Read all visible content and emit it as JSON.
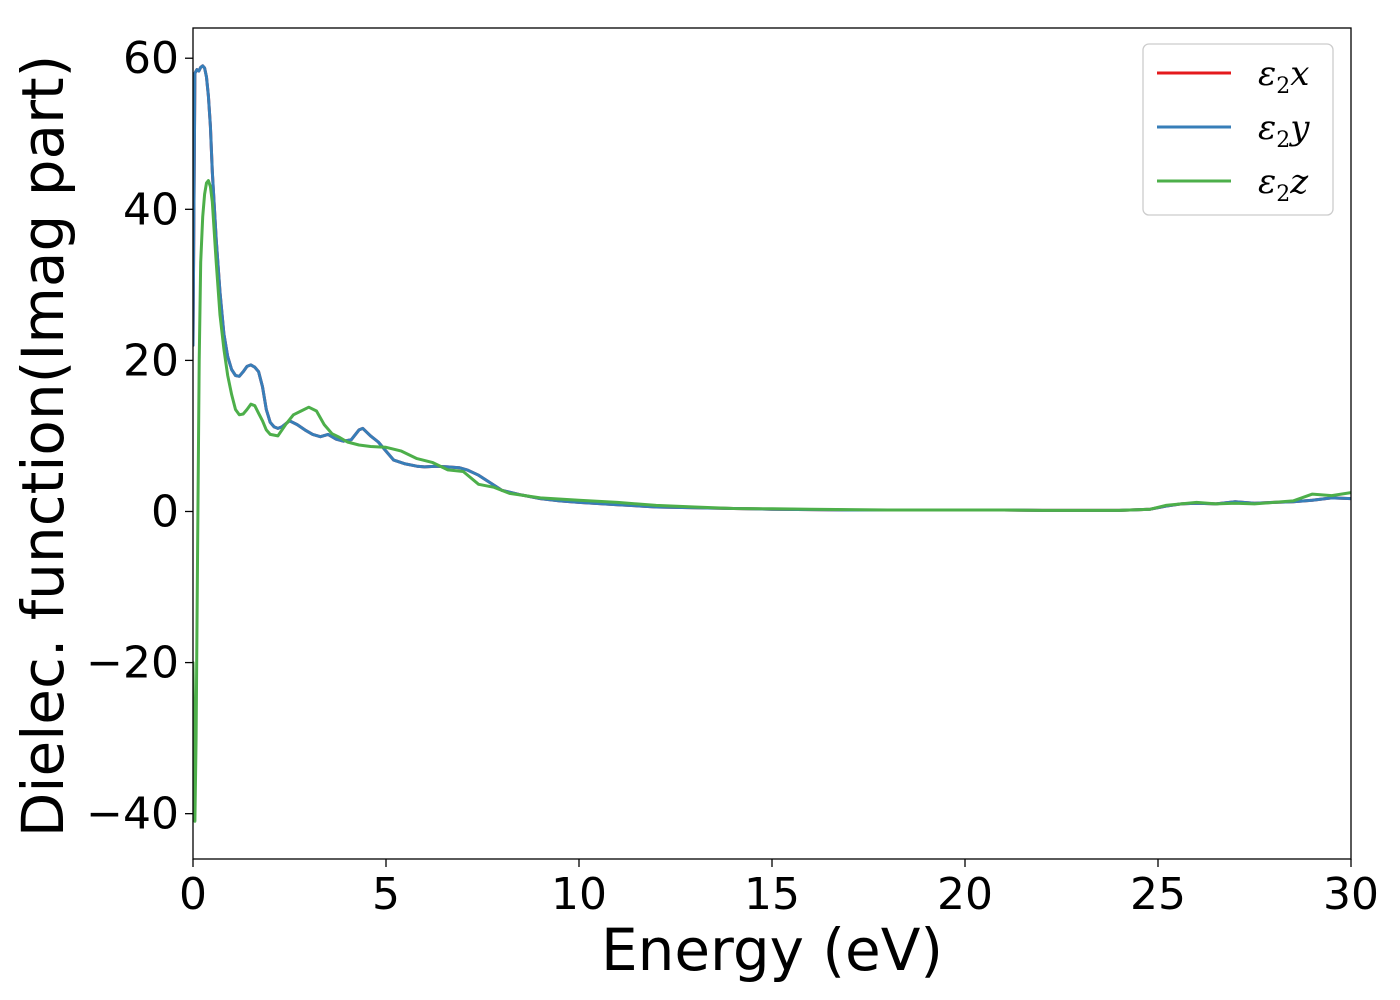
{
  "chart_data": {
    "type": "line",
    "xlabel": "Energy (eV)",
    "ylabel": "Dielec. function(Imag part)",
    "xlim": [
      0,
      30
    ],
    "ylim": [
      -46,
      64
    ],
    "xticks": [
      0,
      5,
      10,
      15,
      20,
      25,
      30
    ],
    "yticks": [
      -40,
      -20,
      0,
      20,
      40,
      60
    ],
    "ytick_labels": [
      "−40",
      "−20",
      "0",
      "20",
      "40",
      "60"
    ],
    "grid": false,
    "legend_position": "top-right",
    "series": [
      {
        "name": "ε₂x",
        "legend_symbol": "ε",
        "legend_sub": "2",
        "legend_var": "x",
        "color": "#e41a1c",
        "x": [
          0,
          0.05,
          0.1,
          0.15,
          0.2,
          0.25,
          0.3,
          0.35,
          0.4,
          0.45,
          0.5,
          0.6,
          0.7,
          0.8,
          0.9,
          1.0,
          1.1,
          1.2,
          1.3,
          1.4,
          1.5,
          1.6,
          1.7,
          1.8,
          1.9,
          2.0,
          2.1,
          2.2,
          2.3,
          2.5,
          2.7,
          2.9,
          3.1,
          3.3,
          3.5,
          3.7,
          3.9,
          4.1,
          4.3,
          4.4,
          4.6,
          4.8,
          5.0,
          5.2,
          5.5,
          5.8,
          6.0,
          6.3,
          6.6,
          6.9,
          7.1,
          7.4,
          7.7,
          8.0,
          8.5,
          9.0,
          9.5,
          10,
          11,
          12,
          13,
          14,
          15,
          16,
          17,
          18,
          19,
          20,
          21,
          22,
          23,
          24,
          24.8,
          25.2,
          25.6,
          26,
          26.5,
          27,
          27.5,
          28,
          28.5,
          29,
          29.5,
          30
        ],
        "values": [
          22,
          58,
          58.5,
          58.3,
          58.8,
          59.0,
          58.7,
          57.5,
          55,
          51,
          45,
          36,
          29,
          23.5,
          20.5,
          18.8,
          18.0,
          17.9,
          18.5,
          19.2,
          19.4,
          19.1,
          18.5,
          16.5,
          13.5,
          11.8,
          11.2,
          11.0,
          11.2,
          12.0,
          11.5,
          10.8,
          10.2,
          9.9,
          10.2,
          9.6,
          9.3,
          9.5,
          10.8,
          11.0,
          10.0,
          9.2,
          8.0,
          6.8,
          6.3,
          6.0,
          5.9,
          6.0,
          5.9,
          5.8,
          5.5,
          4.8,
          3.8,
          2.8,
          2.2,
          1.7,
          1.4,
          1.2,
          0.9,
          0.6,
          0.5,
          0.4,
          0.3,
          0.25,
          0.2,
          0.2,
          0.2,
          0.2,
          0.2,
          0.15,
          0.15,
          0.15,
          0.3,
          0.7,
          1.0,
          1.1,
          1.0,
          1.3,
          1.1,
          1.2,
          1.3,
          1.5,
          1.8,
          1.7
        ]
      },
      {
        "name": "ε₂y",
        "legend_symbol": "ε",
        "legend_sub": "2",
        "legend_var": "y",
        "color": "#377eb8",
        "x": [
          0,
          0.05,
          0.1,
          0.15,
          0.2,
          0.25,
          0.3,
          0.35,
          0.4,
          0.45,
          0.5,
          0.6,
          0.7,
          0.8,
          0.9,
          1.0,
          1.1,
          1.2,
          1.3,
          1.4,
          1.5,
          1.6,
          1.7,
          1.8,
          1.9,
          2.0,
          2.1,
          2.2,
          2.3,
          2.5,
          2.7,
          2.9,
          3.1,
          3.3,
          3.5,
          3.7,
          3.9,
          4.1,
          4.3,
          4.4,
          4.6,
          4.8,
          5.0,
          5.2,
          5.5,
          5.8,
          6.0,
          6.3,
          6.6,
          6.9,
          7.1,
          7.4,
          7.7,
          8.0,
          8.5,
          9.0,
          9.5,
          10,
          11,
          12,
          13,
          14,
          15,
          16,
          17,
          18,
          19,
          20,
          21,
          22,
          23,
          24,
          24.8,
          25.2,
          25.6,
          26,
          26.5,
          27,
          27.5,
          28,
          28.5,
          29,
          29.5,
          30
        ],
        "values": [
          22,
          58,
          58.5,
          58.3,
          58.8,
          59.0,
          58.7,
          57.5,
          55,
          51,
          45,
          36,
          29,
          23.5,
          20.5,
          18.8,
          18.0,
          17.9,
          18.5,
          19.2,
          19.4,
          19.1,
          18.5,
          16.5,
          13.5,
          11.8,
          11.2,
          11.0,
          11.2,
          12.0,
          11.5,
          10.8,
          10.2,
          9.9,
          10.2,
          9.6,
          9.3,
          9.5,
          10.8,
          11.0,
          10.0,
          9.2,
          8.0,
          6.8,
          6.3,
          6.0,
          5.9,
          6.0,
          5.9,
          5.8,
          5.5,
          4.8,
          3.8,
          2.8,
          2.2,
          1.7,
          1.4,
          1.2,
          0.9,
          0.6,
          0.5,
          0.4,
          0.3,
          0.25,
          0.2,
          0.2,
          0.2,
          0.2,
          0.2,
          0.15,
          0.15,
          0.15,
          0.3,
          0.7,
          1.0,
          1.1,
          1.0,
          1.3,
          1.1,
          1.2,
          1.3,
          1.5,
          1.8,
          1.7
        ]
      },
      {
        "name": "ε₂z",
        "legend_symbol": "ε",
        "legend_sub": "2",
        "legend_var": "z",
        "color": "#4daf4a",
        "x": [
          0,
          0.05,
          0.08,
          0.12,
          0.16,
          0.2,
          0.25,
          0.3,
          0.35,
          0.4,
          0.45,
          0.5,
          0.6,
          0.7,
          0.8,
          0.9,
          1.0,
          1.1,
          1.2,
          1.3,
          1.4,
          1.5,
          1.6,
          1.7,
          1.8,
          1.9,
          2.0,
          2.2,
          2.4,
          2.6,
          2.8,
          3.0,
          3.2,
          3.4,
          3.6,
          3.8,
          4.0,
          4.3,
          4.6,
          5.0,
          5.4,
          5.8,
          6.2,
          6.6,
          7.0,
          7.4,
          7.8,
          8.2,
          9.0,
          10,
          11,
          12,
          13,
          14,
          15,
          16,
          17,
          18,
          19,
          20,
          21,
          22,
          23,
          24,
          24.8,
          25.2,
          25.6,
          26,
          26.5,
          27,
          27.5,
          28,
          28.5,
          29,
          29.5,
          30
        ],
        "values": [
          -20,
          -41,
          -30,
          -5,
          20,
          33,
          39,
          42,
          43.5,
          43.8,
          43.0,
          41,
          33,
          26,
          21.5,
          18,
          15.5,
          13.5,
          12.8,
          12.9,
          13.5,
          14.2,
          14.0,
          13.0,
          12.0,
          10.8,
          10.2,
          10.0,
          11.5,
          12.8,
          13.3,
          13.8,
          13.3,
          11.5,
          10.3,
          9.8,
          9.2,
          8.8,
          8.6,
          8.5,
          8.0,
          7.0,
          6.5,
          5.5,
          5.3,
          3.6,
          3.2,
          2.4,
          1.8,
          1.5,
          1.2,
          0.8,
          0.6,
          0.4,
          0.35,
          0.3,
          0.25,
          0.2,
          0.2,
          0.2,
          0.2,
          0.15,
          0.15,
          0.15,
          0.3,
          0.8,
          1.0,
          1.2,
          1.0,
          1.1,
          1.0,
          1.2,
          1.4,
          2.3,
          2.1,
          2.5
        ]
      }
    ]
  }
}
